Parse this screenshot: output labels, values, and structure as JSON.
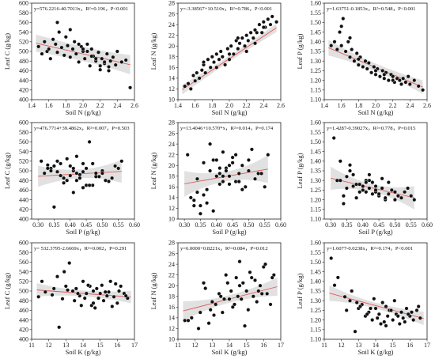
{
  "figure": {
    "ci_color": "#d4d4d4",
    "line_color": "#e05a5a",
    "point_color": "#111111"
  },
  "chart_data": [
    {
      "type": "scatter",
      "row": 0,
      "col": 0,
      "equation": "y=576.2216-40.7013x，R²=0.196，P<0.001",
      "xlabel": "Soil N (g/kg)",
      "ylabel": "Leaf C (g/kg)",
      "xlim": [
        1.4,
        2.6
      ],
      "ylim": [
        400,
        600
      ],
      "xticks": [
        "1.4",
        "1.6",
        "1.8",
        "2.0",
        "2.2",
        "2.4",
        "2.6"
      ],
      "yticks": [
        "400",
        "420",
        "440",
        "460",
        "480",
        "500",
        "520",
        "540",
        "560",
        "580",
        "600"
      ],
      "fit": {
        "intercept": 576.2216,
        "slope": -40.7013
      },
      "ci": [
        1.45,
        2.55,
        18,
        15,
        20
      ],
      "x": [
        1.48,
        1.52,
        1.55,
        1.58,
        1.6,
        1.62,
        1.65,
        1.68,
        1.7,
        1.72,
        1.75,
        1.78,
        1.8,
        1.82,
        1.85,
        1.88,
        1.9,
        1.92,
        1.95,
        1.98,
        2.0,
        2.02,
        2.05,
        2.08,
        2.1,
        2.12,
        2.15,
        2.18,
        2.2,
        2.22,
        2.25,
        2.28,
        2.3,
        2.32,
        2.35,
        2.38,
        2.4,
        2.45,
        2.5,
        2.55,
        1.7,
        1.85,
        2.0,
        2.1,
        2.2,
        2.3,
        1.95,
        2.05,
        2.15,
        2.25
      ],
      "y": [
        510,
        495,
        520,
        500,
        505,
        485,
        525,
        515,
        498,
        540,
        508,
        492,
        530,
        512,
        488,
        505,
        520,
        495,
        478,
        510,
        500,
        485,
        515,
        470,
        505,
        490,
        480,
        498,
        462,
        485,
        475,
        495,
        468,
        480,
        488,
        472,
        500,
        478,
        482,
        425,
        560,
        545,
        505,
        490,
        470,
        460,
        515,
        500,
        485,
        478
      ]
    },
    {
      "type": "scatter",
      "row": 0,
      "col": 1,
      "equation": "y=-3.38567+10.510x，R²=0.786，P<0.001",
      "xlabel": "Soil N (g/kg)",
      "ylabel": "Leaf N (g/kg)",
      "xlim": [
        1.4,
        2.6
      ],
      "ylim": [
        10,
        28
      ],
      "xticks": [
        "1.4",
        "1.6",
        "1.8",
        "2.0",
        "2.2",
        "2.4",
        "2.6"
      ],
      "yticks": [
        "10",
        "12",
        "14",
        "16",
        "18",
        "20",
        "22",
        "24",
        "26",
        "28"
      ],
      "fit": {
        "intercept": -3.38567,
        "slope": 10.51
      },
      "ci": [
        1.45,
        2.55,
        0.9,
        0.55,
        0.8
      ],
      "x": [
        1.48,
        1.52,
        1.55,
        1.58,
        1.6,
        1.62,
        1.65,
        1.68,
        1.7,
        1.72,
        1.75,
        1.78,
        1.8,
        1.82,
        1.85,
        1.88,
        1.9,
        1.92,
        1.95,
        1.98,
        2.0,
        2.02,
        2.05,
        2.08,
        2.1,
        2.12,
        2.15,
        2.18,
        2.2,
        2.22,
        2.25,
        2.28,
        2.3,
        2.32,
        2.35,
        2.38,
        2.4,
        2.42,
        2.45,
        2.48,
        2.5,
        2.55,
        1.7,
        1.85,
        2.0,
        2.1,
        2.2,
        2.3,
        2.4
      ],
      "y": [
        12.5,
        13.0,
        12.0,
        14.5,
        13.5,
        15.0,
        14.0,
        15.5,
        16.5,
        15.0,
        17.5,
        16.0,
        18.0,
        17.0,
        18.5,
        17.5,
        19.0,
        18.0,
        16.5,
        19.5,
        18.5,
        20.0,
        18.5,
        21.0,
        19.5,
        20.5,
        21.5,
        20.0,
        22.0,
        21.0,
        22.5,
        21.5,
        23.0,
        22.5,
        24.0,
        22.5,
        24.5,
        23.5,
        25.0,
        24.0,
        25.5,
        24.5,
        17.0,
        16.0,
        17.5,
        21.5,
        19.0,
        20.5,
        23.5
      ]
    },
    {
      "type": "scatter",
      "row": 0,
      "col": 2,
      "equation": "y=1.63751-0.1853x，R²=0.548，P<0.001",
      "xlabel": "Soil N (g/kg)",
      "ylabel": "Leaf P (g/kg)",
      "xlim": [
        1.4,
        2.6
      ],
      "ylim": [
        1.1,
        1.6
      ],
      "xticks": [
        "1.4",
        "1.6",
        "1.8",
        "2.0",
        "2.2",
        "2.4",
        "2.6"
      ],
      "yticks": [
        "1.10",
        "1.15",
        "1.20",
        "1.25",
        "1.30",
        "1.35",
        "1.40",
        "1.45",
        "1.50",
        "1.55",
        "1.60"
      ],
      "fit": {
        "intercept": 1.63751,
        "slope": -0.1853
      },
      "ci": [
        1.45,
        2.55,
        0.04,
        0.02,
        0.035
      ],
      "x": [
        1.48,
        1.52,
        1.55,
        1.58,
        1.6,
        1.62,
        1.65,
        1.68,
        1.7,
        1.72,
        1.75,
        1.78,
        1.8,
        1.82,
        1.85,
        1.88,
        1.9,
        1.92,
        1.95,
        1.98,
        2.0,
        2.02,
        2.05,
        2.08,
        2.1,
        2.12,
        2.15,
        2.18,
        2.2,
        2.22,
        2.25,
        2.28,
        2.3,
        2.32,
        2.35,
        2.38,
        2.4,
        2.45,
        2.5,
        2.55,
        1.6,
        1.7,
        1.8,
        2.0,
        2.1,
        2.2
      ],
      "y": [
        1.38,
        1.4,
        1.36,
        1.45,
        1.38,
        1.52,
        1.35,
        1.4,
        1.32,
        1.36,
        1.3,
        1.34,
        1.28,
        1.32,
        1.27,
        1.3,
        1.26,
        1.29,
        1.24,
        1.27,
        1.23,
        1.26,
        1.22,
        1.25,
        1.21,
        1.24,
        1.2,
        1.23,
        1.22,
        1.19,
        1.21,
        1.2,
        1.18,
        1.21,
        1.19,
        1.22,
        1.18,
        1.2,
        1.17,
        1.15,
        1.48,
        1.42,
        1.31,
        1.25,
        1.23,
        1.2
      ]
    },
    {
      "type": "scatter",
      "row": 1,
      "col": 0,
      "equation": "y=476.7714+39.4862x，R²=0.007，P=0.503",
      "xlabel": "Soil P (g/kg)",
      "ylabel": "Leaf C (g/kg)",
      "xlim": [
        0.28,
        0.6
      ],
      "ylim": [
        400,
        600
      ],
      "xticks": [
        "0.30",
        "0.35",
        "0.40",
        "0.45",
        "0.50",
        "0.55",
        "0.60"
      ],
      "yticks": [
        "400",
        "420",
        "440",
        "460",
        "480",
        "500",
        "520",
        "540",
        "560",
        "580",
        "600"
      ],
      "fit": {
        "intercept": 476.7714,
        "slope": 39.4862
      },
      "ci": [
        0.3,
        0.56,
        22,
        9,
        24
      ],
      "x": [
        0.31,
        0.32,
        0.33,
        0.34,
        0.35,
        0.36,
        0.37,
        0.38,
        0.39,
        0.4,
        0.41,
        0.42,
        0.43,
        0.44,
        0.45,
        0.46,
        0.47,
        0.48,
        0.49,
        0.5,
        0.51,
        0.52,
        0.54,
        0.55,
        0.56,
        0.33,
        0.36,
        0.39,
        0.42,
        0.45,
        0.48,
        0.35,
        0.38,
        0.41,
        0.44,
        0.47,
        0.4,
        0.43,
        0.46,
        0.34,
        0.37,
        0.42,
        0.44,
        0.5,
        0.53,
        0.41
      ],
      "y": [
        520,
        495,
        512,
        505,
        425,
        498,
        515,
        485,
        525,
        510,
        500,
        480,
        492,
        515,
        505,
        560,
        470,
        495,
        488,
        500,
        480,
        478,
        510,
        505,
        520,
        505,
        520,
        480,
        495,
        470,
        488,
        510,
        475,
        505,
        498,
        515,
        490,
        485,
        470,
        500,
        490,
        530,
        465,
        495,
        485,
        455
      ]
    },
    {
      "type": "scatter",
      "row": 1,
      "col": 1,
      "equation": "y=13.4046+10.570*x，R²=0.014，P=0.174",
      "xlabel": "Soil P (g/kg)",
      "ylabel": "Leaf N (g/kg)",
      "xlim": [
        0.28,
        0.6
      ],
      "ylim": [
        10,
        28
      ],
      "xticks": [
        "0.30",
        "0.35",
        "0.40",
        "0.45",
        "0.50",
        "0.55",
        "0.60"
      ],
      "yticks": [
        "10",
        "12",
        "14",
        "16",
        "18",
        "20",
        "22",
        "24",
        "26",
        "28"
      ],
      "fit": {
        "intercept": 13.4046,
        "slope": 10.57
      },
      "ci": [
        0.3,
        0.56,
        2.4,
        0.9,
        2.6
      ],
      "x": [
        0.31,
        0.32,
        0.33,
        0.34,
        0.35,
        0.36,
        0.37,
        0.38,
        0.39,
        0.4,
        0.41,
        0.42,
        0.43,
        0.44,
        0.45,
        0.46,
        0.47,
        0.48,
        0.49,
        0.5,
        0.51,
        0.52,
        0.54,
        0.55,
        0.56,
        0.33,
        0.36,
        0.39,
        0.42,
        0.45,
        0.48,
        0.35,
        0.38,
        0.41,
        0.44,
        0.47,
        0.4,
        0.43,
        0.46,
        0.34,
        0.37,
        0.42,
        0.44,
        0.5,
        0.53,
        0.41
      ],
      "y": [
        22.0,
        14.0,
        12.5,
        17.5,
        11.0,
        20.5,
        15.5,
        19.0,
        21.0,
        18.0,
        16.5,
        22.5,
        19.5,
        18.0,
        21.5,
        17.0,
        18.5,
        20.0,
        16.0,
        19.0,
        23.0,
        17.5,
        18.5,
        16.0,
        22.0,
        13.5,
        14.5,
        11.5,
        17.0,
        20.5,
        15.5,
        12.5,
        24.0,
        18.5,
        20.0,
        17.0,
        21.0,
        19.0,
        22.0,
        15.0,
        13.0,
        18.0,
        16.5,
        21.0,
        18.5,
        19.5
      ]
    },
    {
      "type": "scatter",
      "row": 1,
      "col": 2,
      "equation": "y=1.4287-0.39027x，R²=0.778，P=0.015",
      "xlabel": "Soil P (g/kg)",
      "ylabel": "Leaf P (g/kg)",
      "xlim": [
        0.28,
        0.6
      ],
      "ylim": [
        1.1,
        1.6
      ],
      "xticks": [
        "0.30",
        "0.35",
        "0.40",
        "0.45",
        "0.50",
        "0.55",
        "0.60"
      ],
      "yticks": [
        "1.10",
        "1.15",
        "1.20",
        "1.25",
        "1.30",
        "1.35",
        "1.40",
        "1.45",
        "1.50",
        "1.55",
        "1.60"
      ],
      "fit": {
        "intercept": 1.4287,
        "slope": -0.39027
      },
      "ci": [
        0.3,
        0.56,
        0.06,
        0.02,
        0.06
      ],
      "x": [
        0.31,
        0.32,
        0.33,
        0.34,
        0.35,
        0.36,
        0.37,
        0.38,
        0.39,
        0.4,
        0.41,
        0.42,
        0.43,
        0.44,
        0.45,
        0.46,
        0.47,
        0.48,
        0.49,
        0.5,
        0.51,
        0.52,
        0.54,
        0.55,
        0.56,
        0.33,
        0.36,
        0.39,
        0.42,
        0.45,
        0.48,
        0.35,
        0.38,
        0.41,
        0.44,
        0.47,
        0.4,
        0.43,
        0.46,
        0.34,
        0.37,
        0.42,
        0.44,
        0.5,
        0.53,
        0.41
      ],
      "y": [
        1.52,
        1.3,
        1.4,
        1.22,
        1.26,
        1.38,
        1.33,
        1.21,
        1.28,
        1.25,
        1.24,
        1.3,
        1.29,
        1.27,
        1.22,
        1.26,
        1.2,
        1.23,
        1.25,
        1.24,
        1.22,
        1.21,
        1.26,
        1.22,
        1.2,
        1.3,
        1.35,
        1.24,
        1.26,
        1.23,
        1.29,
        1.32,
        1.28,
        1.3,
        1.24,
        1.21,
        1.27,
        1.23,
        1.31,
        1.18,
        1.27,
        1.33,
        1.25,
        1.2,
        1.24,
        1.29
      ]
    },
    {
      "type": "scatter",
      "row": 2,
      "col": 0,
      "equation": "y= 532.3795-2.6669x，R²=0.002，P=0.291",
      "xlabel": "Soil K (g/kg)",
      "ylabel": "Leaf C (g/kg)",
      "xlim": [
        11,
        17
      ],
      "ylim": [
        400,
        600
      ],
      "xticks": [
        "11",
        "12",
        "13",
        "14",
        "15",
        "16",
        "17"
      ],
      "yticks": [
        "400",
        "420",
        "440",
        "460",
        "480",
        "500",
        "520",
        "540",
        "560",
        "580",
        "600"
      ],
      "fit": {
        "intercept": 532.3795,
        "slope": -2.6669
      },
      "ci": [
        11.3,
        16.8,
        14,
        6,
        13
      ],
      "x": [
        11.4,
        11.8,
        12.2,
        12.5,
        12.8,
        13.0,
        13.2,
        13.4,
        13.6,
        13.8,
        14.0,
        14.1,
        14.2,
        14.4,
        14.5,
        14.6,
        14.7,
        14.8,
        15.0,
        15.1,
        15.2,
        15.4,
        15.5,
        15.6,
        15.8,
        16.0,
        16.2,
        16.4,
        16.6,
        12.6,
        13.1,
        13.5,
        13.9,
        14.3,
        14.9,
        15.3,
        15.7,
        16.1,
        12.9,
        13.7,
        14.6,
        15.9,
        16.5,
        11.6,
        12.3
      ],
      "y": [
        488,
        498,
        492,
        530,
        484,
        510,
        558,
        500,
        505,
        490,
        520,
        485,
        495,
        510,
        470,
        500,
        465,
        505,
        495,
        512,
        480,
        490,
        498,
        520,
        488,
        475,
        510,
        495,
        485,
        425,
        502,
        480,
        470,
        512,
        485,
        498,
        468,
        500,
        540,
        495,
        475,
        515,
        490,
        520,
        505
      ]
    },
    {
      "type": "scatter",
      "row": 2,
      "col": 1,
      "equation": "y=6.0000+0.8221x，R²=0.084，P=0.012",
      "xlabel": "Soil K (g/kg)",
      "ylabel": "Leaf N (g/kg)",
      "xlim": [
        11,
        17
      ],
      "ylim": [
        10,
        28
      ],
      "xticks": [
        "11",
        "12",
        "13",
        "14",
        "15",
        "16",
        "17"
      ],
      "yticks": [
        "10",
        "12",
        "14",
        "16",
        "18",
        "20",
        "22",
        "24",
        "26",
        "28"
      ],
      "fit": {
        "intercept": 6.0,
        "slope": 0.8221
      },
      "ci": [
        11.3,
        16.8,
        1.8,
        0.7,
        1.7
      ],
      "x": [
        11.4,
        11.8,
        12.2,
        12.5,
        12.8,
        13.0,
        13.2,
        13.4,
        13.6,
        13.8,
        14.0,
        14.1,
        14.2,
        14.4,
        14.5,
        14.6,
        14.7,
        14.8,
        15.0,
        15.1,
        15.2,
        15.4,
        15.5,
        15.6,
        15.8,
        16.0,
        16.2,
        16.4,
        16.6,
        12.6,
        13.1,
        13.5,
        13.9,
        14.3,
        14.9,
        15.3,
        15.7,
        16.1,
        12.9,
        13.7,
        14.6,
        15.9,
        16.5,
        11.6,
        12.3
      ],
      "y": [
        13.5,
        14.0,
        12.0,
        20.5,
        13.0,
        17.0,
        16.5,
        18.5,
        15.0,
        22.0,
        17.5,
        19.0,
        16.0,
        21.5,
        18.0,
        24.5,
        17.5,
        20.5,
        19.0,
        15.5,
        22.5,
        18.0,
        21.0,
        17.0,
        20.0,
        23.5,
        18.5,
        16.5,
        22.0,
        19.5,
        14.5,
        18.0,
        20.5,
        16.5,
        12.5,
        21.5,
        19.0,
        24.0,
        15.5,
        17.5,
        20.0,
        18.5,
        21.5,
        13.5,
        15.0
      ]
    },
    {
      "type": "scatter",
      "row": 2,
      "col": 2,
      "equation": "y=1.6077-0.0238x，R²=0.174，P<0.001",
      "xlabel": "Soil K (g/kg)",
      "ylabel": "Leaf P (g/kg)",
      "xlim": [
        11,
        17
      ],
      "ylim": [
        1.1,
        1.6
      ],
      "xticks": [
        "11",
        "12",
        "13",
        "14",
        "15",
        "16",
        "17"
      ],
      "yticks": [
        "1.10",
        "1.15",
        "1.20",
        "1.25",
        "1.30",
        "1.35",
        "1.40",
        "1.45",
        "1.50",
        "1.55",
        "1.60"
      ],
      "fit": {
        "intercept": 1.6077,
        "slope": -0.0238
      },
      "ci": [
        11.3,
        16.8,
        0.04,
        0.015,
        0.035
      ],
      "x": [
        11.4,
        11.8,
        12.2,
        12.5,
        12.8,
        13.0,
        13.2,
        13.4,
        13.6,
        13.8,
        14.0,
        14.1,
        14.2,
        14.4,
        14.5,
        14.6,
        14.7,
        14.8,
        15.0,
        15.1,
        15.2,
        15.4,
        15.5,
        15.6,
        15.8,
        16.0,
        16.2,
        16.4,
        16.6,
        12.6,
        13.1,
        13.5,
        13.9,
        14.3,
        14.9,
        15.3,
        15.7,
        16.1,
        12.9,
        13.7,
        14.6,
        15.9,
        16.5,
        11.6,
        12.3
      ],
      "y": [
        1.52,
        1.42,
        1.32,
        1.3,
        1.14,
        1.26,
        1.28,
        1.22,
        1.24,
        1.2,
        1.26,
        1.21,
        1.23,
        1.29,
        1.19,
        1.27,
        1.22,
        1.25,
        1.2,
        1.3,
        1.23,
        1.18,
        1.24,
        1.21,
        1.26,
        1.22,
        1.2,
        1.25,
        1.21,
        1.35,
        1.27,
        1.23,
        1.31,
        1.18,
        1.25,
        1.22,
        1.19,
        1.24,
        1.29,
        1.26,
        1.17,
        1.23,
        1.27,
        1.38,
        1.25
      ]
    }
  ]
}
